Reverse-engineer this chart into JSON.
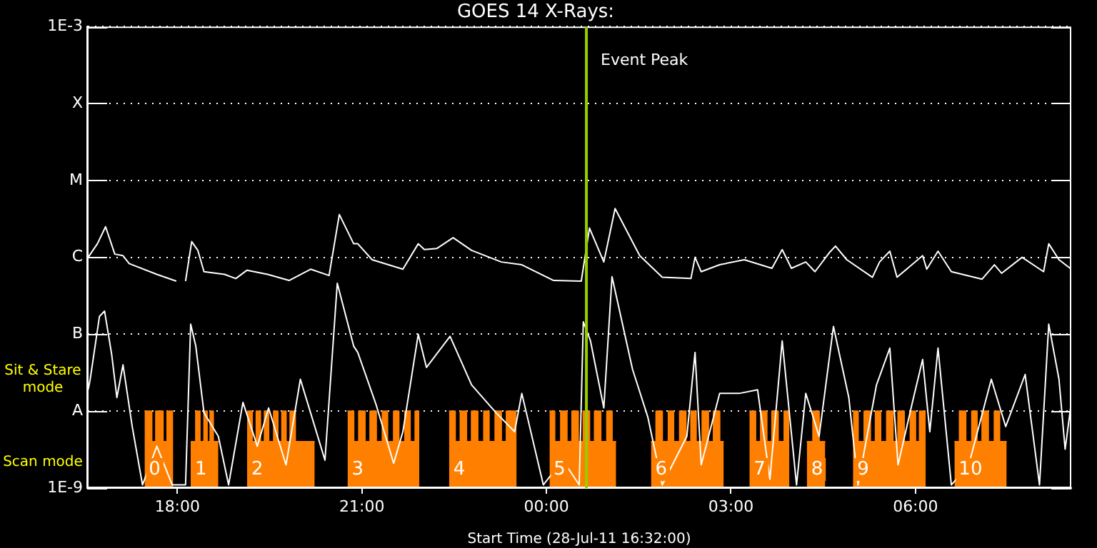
{
  "chart_data": {
    "type": "line",
    "title": "GOES 14 X-Rays:",
    "xlabel": "Start Time (28-Jul-11 16:32:00)",
    "xlim": [
      "--07-28T16:32",
      "--07-29T08:32"
    ],
    "xticks": [
      {
        "value": "--07-28T18:00",
        "label": "18:00"
      },
      {
        "value": "--07-28T21:00",
        "label": "21:00"
      },
      {
        "value": "--07-29T00:00",
        "label": "00:00"
      },
      {
        "value": "--07-29T03:00",
        "label": "03:00"
      },
      {
        "value": "--07-29T06:00",
        "label": "06:00"
      }
    ],
    "log": true,
    "ylim": [
      1e-09,
      0.001
    ],
    "yticks": [
      {
        "value": 1e-09,
        "label": "1E-9"
      },
      {
        "value": 1e-08,
        "label": "A"
      },
      {
        "value": 1e-07,
        "label": "B"
      },
      {
        "value": 1e-06,
        "label": "C"
      },
      {
        "value": 1e-05,
        "label": "M"
      },
      {
        "value": 0.0001,
        "label": "X"
      },
      {
        "value": 0.001,
        "label": "1E-3"
      }
    ],
    "grid": "y",
    "legend": false,
    "marker": "none",
    "line_style": "solid",
    "ref_lines": [
      {
        "axis": "x",
        "value": "--07-29T00:39",
        "label": "Event Peak",
        "color": "#99cc00"
      }
    ],
    "annotations": [
      "Sit & Stare mode",
      "Scan mode",
      "0",
      "1",
      "2",
      "3",
      "4",
      "5",
      "6",
      "7",
      "8",
      "9",
      "10"
    ],
    "series": [
      {
        "type": "line",
        "color": "#ffffff",
        "x": [
          "--07-28T16:33",
          "--07-28T16:42",
          "--07-28T16:50",
          "--07-28T16:59",
          "--07-28T17:07",
          "--07-28T17:13",
          "--07-28T17:40",
          "--07-28T17:59",
          "--07-28T18:04",
          "--07-28T18:08",
          "--07-28T18:14",
          "--07-28T18:20",
          "--07-28T18:26",
          "--07-28T18:46",
          "--07-28T18:57",
          "--07-28T19:08",
          "--07-28T19:28",
          "--07-28T19:49",
          "--07-28T20:10",
          "--07-28T20:28",
          "--07-28T20:38",
          "--07-28T20:52",
          "--07-28T20:56",
          "--07-28T21:10",
          "--07-28T21:40",
          "--07-28T21:55",
          "--07-28T22:01",
          "--07-28T22:13",
          "--07-28T22:29",
          "--07-28T22:47",
          "--07-28T23:16",
          "--07-28T23:36",
          "--07-29T00:07",
          "--07-29T00:34",
          "--07-29T00:42",
          "--07-29T00:56",
          "--07-29T01:07",
          "--07-29T01:31",
          "--07-29T01:53",
          "--07-29T02:21",
          "--07-29T02:25",
          "--07-29T02:31",
          "--07-29T02:49",
          "--07-29T03:13",
          "--07-29T03:40",
          "--07-29T03:50",
          "--07-29T03:59",
          "--07-29T04:13",
          "--07-29T04:22",
          "--07-29T04:36",
          "--07-29T04:42",
          "--07-29T04:53",
          "--07-29T05:18",
          "--07-29T05:25",
          "--07-29T05:35",
          "--07-29T05:42",
          "--07-29T06:07",
          "--07-29T06:11",
          "--07-29T06:22",
          "--07-29T06:35",
          "--07-29T07:05",
          "--07-29T07:17",
          "--07-29T07:24",
          "--07-29T07:44",
          "--07-29T08:05",
          "--07-29T08:10",
          "--07-29T08:20",
          "--07-29T08:32"
        ],
        "values": [
          1e-06,
          1.5e-06,
          2.5e-06,
          1.1e-06,
          1.05e-06,
          8.3e-07,
          6e-07,
          4.9e-07,
          null,
          4.9e-07,
          1.6e-06,
          1.23e-06,
          6.5e-07,
          6e-07,
          5.3e-07,
          6.8e-07,
          6e-07,
          5e-07,
          7e-07,
          5.8e-07,
          3.6e-06,
          1.5e-06,
          1.5e-06,
          9.3e-07,
          7e-07,
          1.5e-06,
          1.26e-06,
          1.3e-06,
          1.8e-06,
          1.23e-06,
          8.7e-07,
          8e-07,
          5e-07,
          4.9e-07,
          2.4e-06,
          8.7e-07,
          4.3e-06,
          1.05e-06,
          5.5e-07,
          5.3e-07,
          1e-06,
          6.5e-07,
          8e-07,
          9.3e-07,
          7.2e-07,
          1.26e-06,
          7.2e-07,
          8.7e-07,
          6.5e-07,
          1.15e-06,
          1.4e-06,
          9.3e-07,
          5.5e-07,
          8.7e-07,
          1.2e-06,
          5.5e-07,
          1.05e-06,
          7e-07,
          1.2e-06,
          6.5e-07,
          5.2e-07,
          8e-07,
          6.2e-07,
          1e-06,
          6.5e-07,
          1.5e-06,
          9.3e-07,
          7e-07
        ]
      },
      {
        "type": "line",
        "color": "#ffffff",
        "x": [
          "--07-28T16:33",
          "--07-28T16:35",
          "--07-28T16:44",
          "--07-28T16:49",
          "--07-28T16:56",
          "--07-28T17:01",
          "--07-28T17:07",
          "--07-28T17:16",
          "--07-28T17:26",
          "--07-28T17:40",
          "--07-28T17:55",
          "--07-28T18:08",
          "--07-28T18:13",
          "--07-28T18:18",
          "--07-28T18:26",
          "--07-28T18:40",
          "--07-28T18:50",
          "--07-28T19:04",
          "--07-28T19:18",
          "--07-28T19:29",
          "--07-28T19:46",
          "--07-28T20:00",
          "--07-28T20:10",
          "--07-28T20:24",
          "--07-28T20:36",
          "--07-28T20:52",
          "--07-28T20:56",
          "--07-28T21:14",
          "--07-28T21:31",
          "--07-28T21:40",
          "--07-28T21:55",
          "--07-28T22:03",
          "--07-28T22:26",
          "--07-28T22:47",
          "--07-28T23:11",
          "--07-28T23:29",
          "--07-28T23:36",
          "--07-28T23:57",
          "--07-29T00:16",
          "--07-29T00:32",
          "--07-29T00:36",
          "--07-29T00:43",
          "--07-29T00:56",
          "--07-29T01:04",
          "--07-29T01:24",
          "--07-29T01:39",
          "--07-29T01:53",
          "--07-29T02:17",
          "--07-29T02:25",
          "--07-29T02:31",
          "--07-29T02:49",
          "--07-29T03:08",
          "--07-29T03:26",
          "--07-29T03:38",
          "--07-29T03:50",
          "--07-29T04:04",
          "--07-29T04:13",
          "--07-29T04:26",
          "--07-29T04:40",
          "--07-29T04:55",
          "--07-29T05:04",
          "--07-29T05:22",
          "--07-29T05:35",
          "--07-29T05:43",
          "--07-29T05:57",
          "--07-29T06:07",
          "--07-29T06:14",
          "--07-29T06:22",
          "--07-29T06:35",
          "--07-29T06:52",
          "--07-29T07:14",
          "--07-29T07:28",
          "--07-29T07:47",
          "--07-29T08:01",
          "--07-29T08:10",
          "--07-29T08:20",
          "--07-29T08:26",
          "--07-29T08:32"
        ],
        "values": [
          1.9e-08,
          2.6e-08,
          1.7e-07,
          2e-07,
          5.4e-08,
          1.5e-08,
          4e-08,
          6.3e-09,
          1.1e-09,
          3.5e-09,
          1.1e-09,
          1.1e-09,
          1.35e-07,
          7e-08,
          9.5e-09,
          4.7e-09,
          1.1e-09,
          1.3e-08,
          3.5e-09,
          1.1e-08,
          2e-09,
          2.6e-08,
          9.5e-09,
          2.3e-09,
          4.6e-07,
          7e-08,
          5.8e-08,
          1.2e-08,
          2.1e-09,
          5.4e-09,
          1e-07,
          3.7e-08,
          9.4e-08,
          2.2e-08,
          9.5e-09,
          5.4e-09,
          1.7e-08,
          1.1e-09,
          2.3e-09,
          1.1e-09,
          1.45e-07,
          8.2e-08,
          1.1e-08,
          5.6e-07,
          3.5e-08,
          8.3e-09,
          1.1e-09,
          4.7e-09,
          5.8e-08,
          2e-09,
          1.7e-08,
          1.7e-08,
          1.9e-08,
          1.3e-09,
          8.2e-08,
          1.1e-09,
          1.7e-08,
          4.7e-09,
          1.26e-07,
          1.5e-08,
          1.1e-09,
          2.2e-08,
          6.6e-08,
          2e-09,
          1.3e-08,
          4.7e-08,
          5.4e-09,
          6.6e-08,
          1.1e-09,
          2e-09,
          2.6e-08,
          6.3e-09,
          3e-08,
          1.1e-09,
          1.35e-07,
          2.6e-08,
          3.2e-09,
          1.3e-08
        ]
      },
      {
        "type": "area",
        "color": "#ff8000",
        "x": [
          "--07-28T17:28",
          "--07-28T17:35",
          "--07-28T17:35",
          "--07-28T17:39",
          "--07-28T17:39",
          "--07-28T17:46",
          "--07-28T17:46",
          "--07-28T17:50",
          "--07-28T17:50",
          "--07-28T17:56"
        ],
        "values": [
          1e-08,
          1e-08,
          4e-09,
          4e-09,
          1e-08,
          1e-08,
          4e-09,
          4e-09,
          1e-08,
          1e-08
        ]
      },
      {
        "type": "area",
        "color": "#ff8000",
        "x": [
          "--07-28T18:13",
          "--07-28T18:18",
          "--07-28T18:18",
          "--07-28T18:22",
          "--07-28T18:22",
          "--07-28T18:26",
          "--07-28T18:26",
          "--07-28T18:29",
          "--07-28T18:29",
          "--07-28T18:32",
          "--07-28T18:32",
          "--07-28T18:35",
          "--07-28T18:35",
          "--07-28T18:40"
        ],
        "values": [
          4e-09,
          4e-09,
          1e-08,
          1e-08,
          4e-09,
          4e-09,
          1e-08,
          1e-08,
          4e-09,
          4e-09,
          1e-08,
          1e-08,
          4e-09,
          4e-09
        ]
      },
      {
        "type": "area",
        "color": "#ff8000",
        "x": [
          "--07-28T19:08",
          "--07-28T19:13",
          "--07-28T19:13",
          "--07-28T19:17",
          "--07-28T19:17",
          "--07-28T19:21",
          "--07-28T19:21",
          "--07-28T19:25",
          "--07-28T19:25",
          "--07-28T19:29",
          "--07-28T19:29",
          "--07-28T19:34",
          "--07-28T19:34",
          "--07-28T19:38",
          "--07-28T19:38",
          "--07-28T19:42",
          "--07-28T19:42",
          "--07-28T19:46",
          "--07-28T19:46",
          "--07-28T19:50",
          "--07-28T19:50",
          "--07-28T19:55",
          "--07-28T19:55",
          "--07-28T20:14"
        ],
        "values": [
          1e-08,
          1e-08,
          4e-09,
          4e-09,
          1e-08,
          1e-08,
          4e-09,
          4e-09,
          1e-08,
          1e-08,
          4e-09,
          4e-09,
          1e-08,
          1e-08,
          4e-09,
          4e-09,
          1e-08,
          1e-08,
          4e-09,
          4e-09,
          1e-08,
          1e-08,
          4e-09,
          4e-09
        ]
      },
      {
        "type": "area",
        "color": "#ff8000",
        "x": [
          "--07-28T20:46",
          "--07-28T20:52",
          "--07-28T20:52",
          "--07-28T20:57",
          "--07-28T20:57",
          "--07-28T21:03",
          "--07-28T21:03",
          "--07-28T21:08",
          "--07-28T21:08",
          "--07-28T21:14",
          "--07-28T21:14",
          "--07-28T21:20",
          "--07-28T21:20",
          "--07-28T21:25",
          "--07-28T21:25",
          "--07-28T21:31",
          "--07-28T21:31",
          "--07-28T21:36",
          "--07-28T21:36",
          "--07-28T21:42",
          "--07-28T21:42",
          "--07-28T21:47",
          "--07-28T21:47",
          "--07-28T21:52",
          "--07-28T21:52",
          "--07-28T21:56"
        ],
        "values": [
          1e-08,
          1e-08,
          4e-09,
          4e-09,
          1e-08,
          1e-08,
          4e-09,
          4e-09,
          1e-08,
          1e-08,
          4e-09,
          4e-09,
          1e-08,
          1e-08,
          4e-09,
          4e-09,
          1e-08,
          1e-08,
          4e-09,
          4e-09,
          1e-08,
          1e-08,
          4e-09,
          4e-09,
          1e-08,
          1e-08
        ]
      },
      {
        "type": "area",
        "color": "#ff8000",
        "x": [
          "--07-28T22:25",
          "--07-28T22:31",
          "--07-28T22:31",
          "--07-28T22:36",
          "--07-28T22:36",
          "--07-28T22:42",
          "--07-28T22:42",
          "--07-28T22:47",
          "--07-28T22:47",
          "--07-28T22:53",
          "--07-28T22:53",
          "--07-28T22:59",
          "--07-28T22:59",
          "--07-28T23:04",
          "--07-28T23:04",
          "--07-28T23:10",
          "--07-28T23:10",
          "--07-28T23:16",
          "--07-28T23:16",
          "--07-28T23:21",
          "--07-28T23:21",
          "--07-28T23:31"
        ],
        "values": [
          1e-08,
          1e-08,
          4e-09,
          4e-09,
          1e-08,
          1e-08,
          4e-09,
          4e-09,
          1e-08,
          1e-08,
          4e-09,
          4e-09,
          1e-08,
          1e-08,
          4e-09,
          4e-09,
          1e-08,
          1e-08,
          4e-09,
          4e-09,
          1e-08,
          1e-08
        ]
      },
      {
        "type": "area",
        "color": "#ff8000",
        "x": [
          "--07-29T00:03",
          "--07-29T00:08",
          "--07-29T00:08",
          "--07-29T00:14",
          "--07-29T00:14",
          "--07-29T00:20",
          "--07-29T00:20",
          "--07-29T00:25",
          "--07-29T00:25",
          "--07-29T00:31",
          "--07-29T00:31",
          "--07-29T00:36",
          "--07-29T00:36",
          "--07-29T00:42",
          "--07-29T00:42",
          "--07-29T00:47",
          "--07-29T00:47",
          "--07-29T00:53",
          "--07-29T00:53",
          "--07-29T00:59",
          "--07-29T00:59",
          "--07-29T01:04",
          "--07-29T01:04",
          "--07-29T01:08"
        ],
        "values": [
          1e-08,
          1e-08,
          4e-09,
          4e-09,
          1e-08,
          1e-08,
          4e-09,
          4e-09,
          1e-08,
          1e-08,
          4e-09,
          4e-09,
          1e-08,
          1e-08,
          4e-09,
          4e-09,
          1e-08,
          1e-08,
          4e-09,
          4e-09,
          1e-08,
          1e-08,
          4e-09,
          4e-09
        ]
      },
      {
        "type": "area",
        "color": "#ff8000",
        "x": [
          "--07-29T01:42",
          "--07-29T01:47",
          "--07-29T01:47",
          "--07-29T01:53",
          "--07-29T01:53",
          "--07-29T01:59",
          "--07-29T01:59",
          "--07-29T02:04",
          "--07-29T02:04",
          "--07-29T02:10",
          "--07-29T02:10",
          "--07-29T02:16",
          "--07-29T02:16",
          "--07-29T02:21",
          "--07-29T02:21",
          "--07-29T02:26",
          "--07-29T02:26",
          "--07-29T02:32",
          "--07-29T02:32",
          "--07-29T02:38",
          "--07-29T02:38",
          "--07-29T02:43",
          "--07-29T02:43",
          "--07-29T02:49",
          "--07-29T02:49",
          "--07-29T02:53"
        ],
        "values": [
          4e-09,
          4e-09,
          1e-08,
          1e-08,
          4e-09,
          4e-09,
          1e-08,
          1e-08,
          4e-09,
          4e-09,
          1e-08,
          1e-08,
          4e-09,
          4e-09,
          1e-08,
          1e-08,
          4e-09,
          4e-09,
          1e-08,
          1e-08,
          4e-09,
          4e-09,
          1e-08,
          1e-08,
          4e-09,
          4e-09
        ]
      },
      {
        "type": "area",
        "color": "#ff8000",
        "x": [
          "--07-29T03:18",
          "--07-29T03:24",
          "--07-29T03:24",
          "--07-29T03:29",
          "--07-29T03:29",
          "--07-29T03:35",
          "--07-29T03:35",
          "--07-29T03:40",
          "--07-29T03:40",
          "--07-29T03:46",
          "--07-29T03:46",
          "--07-29T03:52",
          "--07-29T03:52",
          "--07-29T03:57"
        ],
        "values": [
          1e-08,
          1e-08,
          4e-09,
          4e-09,
          1e-08,
          1e-08,
          4e-09,
          4e-09,
          1e-08,
          1e-08,
          4e-09,
          4e-09,
          1e-08,
          1e-08
        ]
      },
      {
        "type": "area",
        "color": "#ff8000",
        "x": [
          "--07-29T04:14",
          "--07-29T04:20",
          "--07-29T04:20",
          "--07-29T04:26",
          "--07-29T04:26",
          "--07-29T04:32"
        ],
        "values": [
          4e-09,
          4e-09,
          1e-08,
          1e-08,
          4e-09,
          4e-09
        ]
      },
      {
        "type": "area",
        "color": "#ff8000",
        "x": [
          "--07-29T04:59",
          "--07-29T05:04",
          "--07-29T05:04",
          "--07-29T05:10",
          "--07-29T05:10",
          "--07-29T05:16",
          "--07-29T05:16",
          "--07-29T05:21",
          "--07-29T05:21",
          "--07-29T05:26",
          "--07-29T05:26",
          "--07-29T05:32",
          "--07-29T05:32",
          "--07-29T05:38",
          "--07-29T05:38",
          "--07-29T05:43",
          "--07-29T05:43",
          "--07-29T05:49",
          "--07-29T05:49",
          "--07-29T05:55",
          "--07-29T05:55",
          "--07-29T06:00",
          "--07-29T06:00",
          "--07-29T06:04",
          "--07-29T06:04",
          "--07-29T06:10"
        ],
        "values": [
          1e-08,
          1e-08,
          4e-09,
          4e-09,
          1e-08,
          1e-08,
          4e-09,
          4e-09,
          1e-08,
          1e-08,
          4e-09,
          4e-09,
          1e-08,
          1e-08,
          4e-09,
          4e-09,
          1e-08,
          1e-08,
          4e-09,
          4e-09,
          1e-08,
          1e-08,
          4e-09,
          4e-09,
          1e-08,
          1e-08
        ]
      },
      {
        "type": "area",
        "color": "#ff8000",
        "x": [
          "--07-29T06:38",
          "--07-29T06:43",
          "--07-29T06:43",
          "--07-29T06:49",
          "--07-29T06:49",
          "--07-29T06:55",
          "--07-29T06:55",
          "--07-29T07:00",
          "--07-29T07:00",
          "--07-29T07:05",
          "--07-29T07:05",
          "--07-29T07:11",
          "--07-29T07:11",
          "--07-29T07:17",
          "--07-29T07:17",
          "--07-29T07:22",
          "--07-29T07:22",
          "--07-29T07:29"
        ],
        "values": [
          4e-09,
          4e-09,
          1e-08,
          1e-08,
          4e-09,
          4e-09,
          1e-08,
          1e-08,
          4e-09,
          4e-09,
          1e-08,
          1e-08,
          4e-09,
          4e-09,
          1e-08,
          1e-08,
          4e-09,
          4e-09
        ]
      }
    ]
  }
}
